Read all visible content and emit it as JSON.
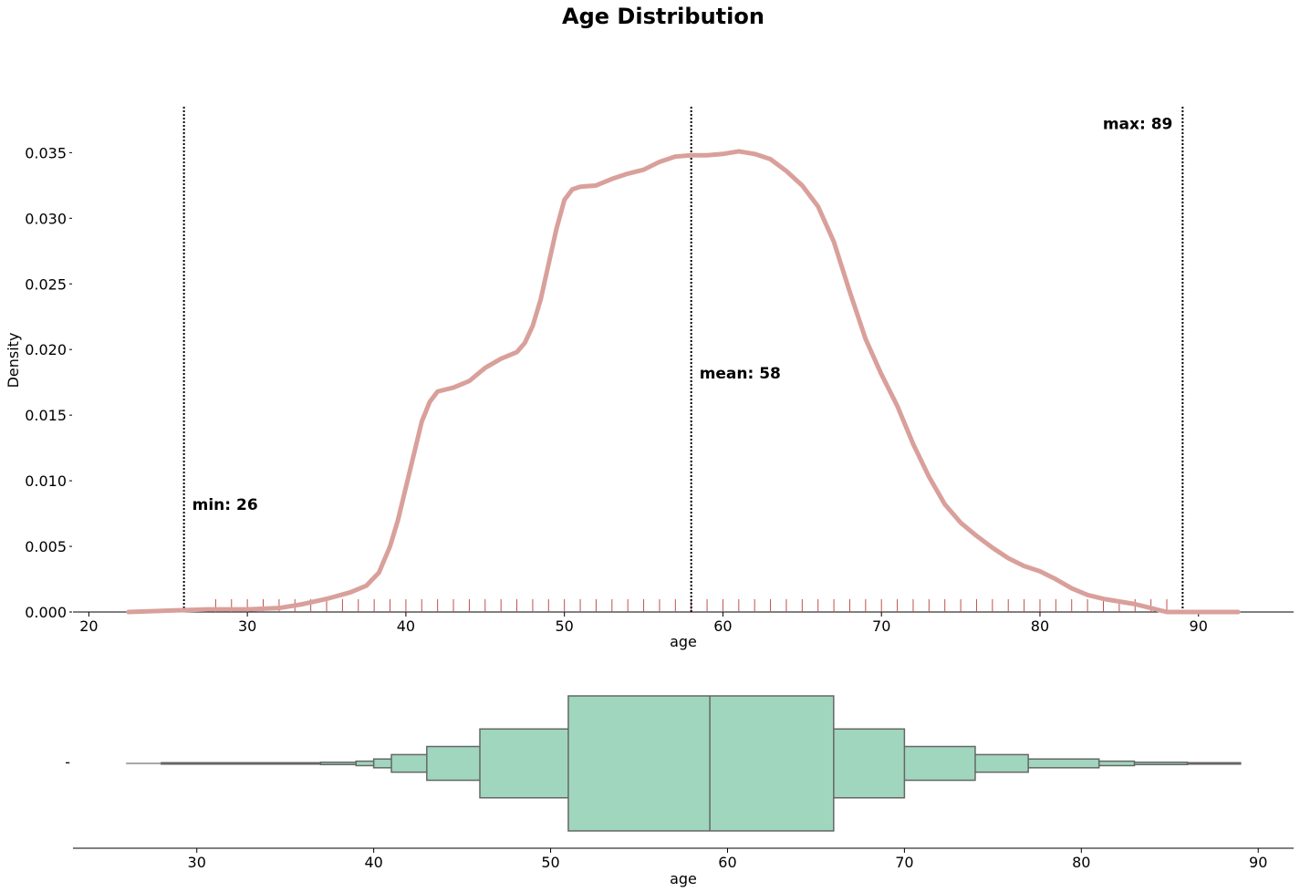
{
  "chart_data": [
    {
      "type": "line",
      "title": "Age Distribution",
      "xlabel": "age",
      "ylabel": "Density",
      "xlim": [
        19,
        96
      ],
      "ylim": [
        0,
        0.0385
      ],
      "xticks": [
        20,
        30,
        40,
        50,
        60,
        70,
        80,
        90
      ],
      "yticks": [
        "0.000",
        "0.005",
        "0.010",
        "0.015",
        "0.020",
        "0.025",
        "0.030",
        "0.035"
      ],
      "series": [
        {
          "kind": "kde",
          "color": "#d9a09b",
          "x": [
            22.5,
            25,
            27.5,
            30,
            32,
            33.5,
            35,
            36.5,
            37.5,
            38.3,
            39,
            39.5,
            40,
            40.5,
            41,
            41.5,
            42,
            43,
            44,
            45,
            46,
            47,
            47.5,
            48,
            48.5,
            49,
            49.5,
            50,
            50.5,
            51,
            52,
            53,
            54,
            55,
            56,
            57,
            58,
            59,
            60,
            61,
            62,
            63,
            64,
            65,
            66,
            67,
            68,
            69,
            70,
            71,
            72,
            73,
            74,
            75,
            76,
            77,
            78,
            79,
            80,
            81,
            82,
            83,
            84,
            85,
            86,
            87,
            88,
            89,
            90,
            91,
            92.5
          ],
          "y": [
            0.0,
            0.0001,
            0.0002,
            0.0002,
            0.0003,
            0.0006,
            0.001,
            0.0015,
            0.002,
            0.003,
            0.005,
            0.007,
            0.0095,
            0.012,
            0.0145,
            0.016,
            0.0168,
            0.0171,
            0.0176,
            0.0186,
            0.0193,
            0.0198,
            0.0205,
            0.0218,
            0.0238,
            0.0265,
            0.0292,
            0.0314,
            0.0322,
            0.0324,
            0.0325,
            0.033,
            0.0334,
            0.0337,
            0.0343,
            0.0347,
            0.0348,
            0.0348,
            0.0349,
            0.0351,
            0.0349,
            0.0345,
            0.0336,
            0.0325,
            0.0309,
            0.0282,
            0.0244,
            0.0208,
            0.0181,
            0.0157,
            0.0128,
            0.0103,
            0.0082,
            0.0068,
            0.0058,
            0.0049,
            0.0041,
            0.0035,
            0.0031,
            0.0025,
            0.0018,
            0.0013,
            0.001,
            0.0008,
            0.0006,
            0.0003,
            0.0,
            0.0,
            0.0,
            0.0,
            0.0
          ]
        }
      ],
      "rug": {
        "color": "#c0504d",
        "values": [
          28,
          29,
          30,
          31,
          32,
          33,
          34,
          35,
          36,
          37,
          38,
          39,
          40,
          41,
          42,
          43,
          44,
          45,
          46,
          47,
          48,
          49,
          50,
          51,
          52,
          53,
          54,
          55,
          56,
          57,
          58,
          59,
          60,
          61,
          62,
          63,
          64,
          65,
          66,
          67,
          68,
          69,
          70,
          71,
          72,
          73,
          74,
          75,
          76,
          77,
          78,
          79,
          80,
          81,
          82,
          83,
          84,
          85,
          86,
          87,
          88
        ]
      },
      "annotations": [
        {
          "label": "min: 26",
          "x": 26,
          "y_text": 0.0082
        },
        {
          "label": "mean: 58",
          "x": 58,
          "y_text": 0.0182
        },
        {
          "label": "max: 89",
          "x": 89,
          "y_text": 0.0372
        }
      ]
    },
    {
      "type": "boxen",
      "xlabel": "age",
      "xlim": [
        23,
        92
      ],
      "xticks": [
        30,
        40,
        50,
        60,
        70,
        80,
        90
      ],
      "ytick_label": "-",
      "color": "#a0d6be",
      "median": 59,
      "whisker": [
        26,
        89
      ],
      "boxes": [
        {
          "lo": 51,
          "hi": 66,
          "height": 1.0
        },
        {
          "lo": 46,
          "hi": 70,
          "height": 0.51
        },
        {
          "lo": 43,
          "hi": 74,
          "height": 0.25
        },
        {
          "lo": 41,
          "hi": 77,
          "height": 0.13
        },
        {
          "lo": 40,
          "hi": 81,
          "height": 0.065
        },
        {
          "lo": 39,
          "hi": 83,
          "height": 0.033
        },
        {
          "lo": 37,
          "hi": 86,
          "height": 0.017
        },
        {
          "lo": 35,
          "hi": 87,
          "height": 0.009
        },
        {
          "lo": 28,
          "hi": 89,
          "height": 0.004
        }
      ]
    }
  ]
}
